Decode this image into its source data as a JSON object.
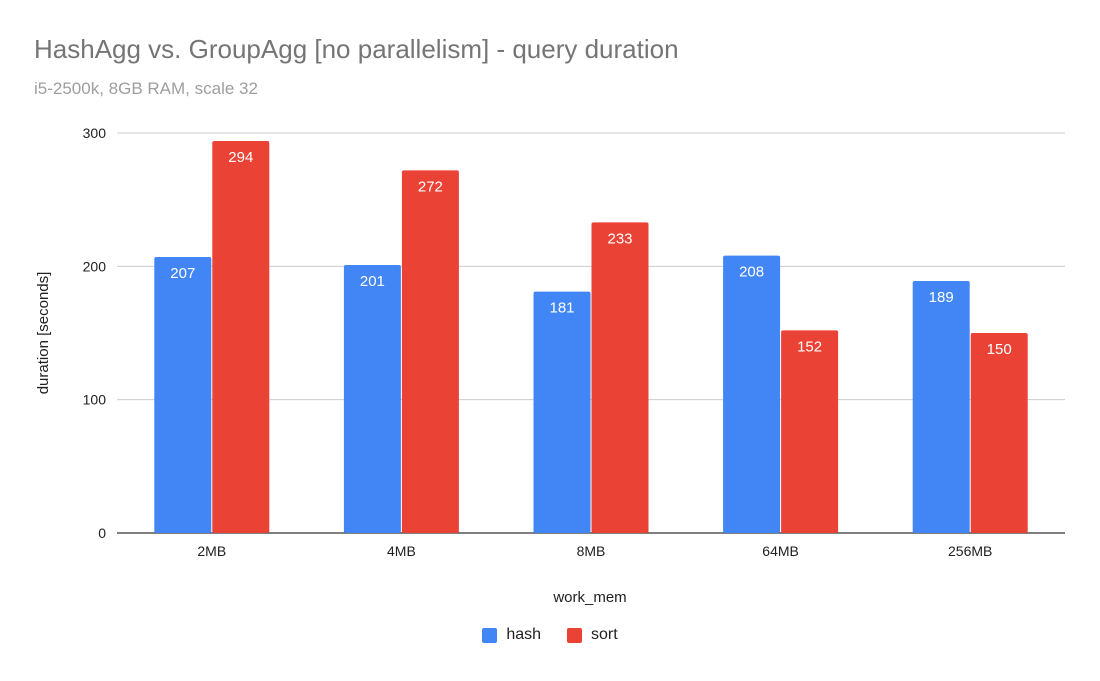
{
  "chart_data": {
    "type": "bar",
    "title": "HashAgg vs. GroupAgg [no parallelism] - query duration",
    "subtitle": "i5-2500k, 8GB RAM, scale 32",
    "xlabel": "work_mem",
    "ylabel": "duration [seconds]",
    "categories": [
      "2MB",
      "4MB",
      "8MB",
      "64MB",
      "256MB"
    ],
    "series": [
      {
        "name": "hash",
        "color": "#4285f4",
        "values": [
          207,
          201,
          181,
          208,
          189
        ]
      },
      {
        "name": "sort",
        "color": "#ea4335",
        "values": [
          294,
          272,
          233,
          152,
          150
        ]
      }
    ],
    "ylim": [
      0,
      300
    ],
    "yticks": [
      0,
      100,
      200,
      300
    ],
    "grid": true,
    "legend_position": "bottom"
  }
}
